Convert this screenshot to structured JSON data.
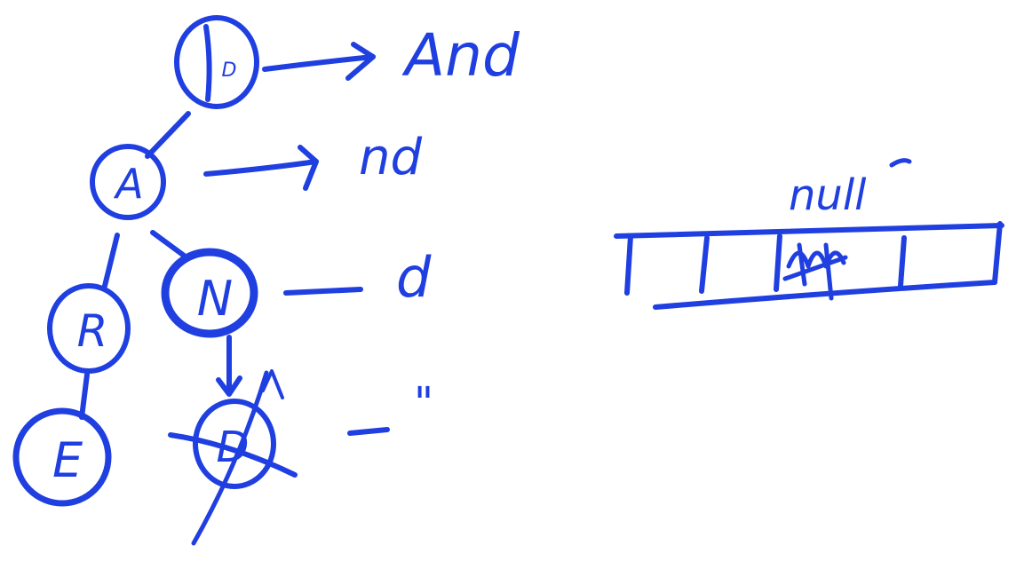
{
  "colors": {
    "ink": "#1f3fe0",
    "background": "#ffffff"
  },
  "tree": {
    "nodes": [
      {
        "id": "root",
        "label": "D"
      },
      {
        "id": "a",
        "label": "A"
      },
      {
        "id": "r",
        "label": "R"
      },
      {
        "id": "n",
        "label": "N"
      },
      {
        "id": "e",
        "label": "E"
      },
      {
        "id": "d2",
        "label": "D",
        "crossed": true
      }
    ],
    "suffixes": [
      {
        "for": "root",
        "text": "And"
      },
      {
        "for": "a",
        "text": "nd"
      },
      {
        "for": "n",
        "text": "d"
      },
      {
        "for": "d2",
        "text": "\""
      }
    ]
  },
  "array": {
    "label": "null",
    "cells": 4
  }
}
